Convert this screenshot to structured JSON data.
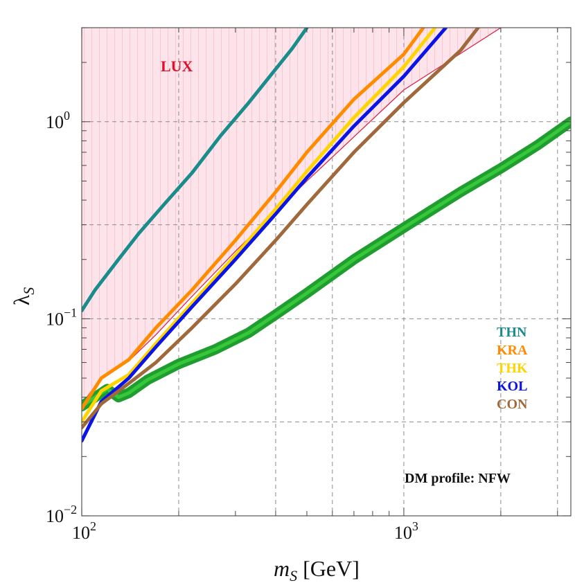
{
  "chart_data": {
    "type": "line",
    "title": "",
    "xscale": "log",
    "yscale": "log",
    "xlim": [
      100,
      3300
    ],
    "ylim": [
      0.01,
      3.0
    ],
    "grid": true,
    "xlabel": {
      "var": "m",
      "sub": "S",
      "rest": " [GeV]"
    },
    "ylabel": {
      "var": "λ",
      "sub": "S"
    },
    "xticks": [
      {
        "value": 100,
        "base": "10",
        "exp": "2"
      },
      {
        "value": 1000,
        "base": "10",
        "exp": "3"
      }
    ],
    "yticks": [
      {
        "value": 0.01,
        "base": "10",
        "exp": "−2"
      },
      {
        "value": 0.1,
        "base": "10",
        "exp": "−1"
      },
      {
        "value": 1,
        "base": "10",
        "exp": "0"
      }
    ],
    "excluded_region": {
      "label": "LUX",
      "color": "#d81b3c",
      "boundary": [
        [
          100,
          0.037
        ],
        [
          115,
          0.05
        ],
        [
          140,
          0.061
        ],
        [
          170,
          0.083
        ],
        [
          220,
          0.13
        ],
        [
          300,
          0.22
        ],
        [
          500,
          0.5
        ],
        [
          1000,
          1.45
        ],
        [
          2000,
          3.0
        ]
      ]
    },
    "band": {
      "color": "#1f9e2f",
      "points": [
        [
          100,
          0.036
        ],
        [
          110,
          0.04
        ],
        [
          120,
          0.044
        ],
        [
          130,
          0.04
        ],
        [
          140,
          0.042
        ],
        [
          160,
          0.049
        ],
        [
          200,
          0.059
        ],
        [
          260,
          0.07
        ],
        [
          330,
          0.085
        ],
        [
          400,
          0.105
        ],
        [
          500,
          0.135
        ],
        [
          700,
          0.2
        ],
        [
          1000,
          0.29
        ],
        [
          1500,
          0.44
        ],
        [
          2000,
          0.58
        ],
        [
          2600,
          0.76
        ],
        [
          3300,
          1.0
        ]
      ]
    },
    "series": [
      {
        "name": "THN",
        "color": "#1a8c8c",
        "points": [
          [
            100,
            0.11
          ],
          [
            110,
            0.14
          ],
          [
            130,
            0.2
          ],
          [
            150,
            0.27
          ],
          [
            180,
            0.38
          ],
          [
            220,
            0.55
          ],
          [
            270,
            0.85
          ],
          [
            330,
            1.25
          ],
          [
            400,
            1.85
          ],
          [
            450,
            2.35
          ],
          [
            500,
            3.0
          ]
        ]
      },
      {
        "name": "KRA",
        "color": "#ff8c00",
        "points": [
          [
            100,
            0.035
          ],
          [
            115,
            0.05
          ],
          [
            140,
            0.062
          ],
          [
            170,
            0.09
          ],
          [
            220,
            0.14
          ],
          [
            300,
            0.25
          ],
          [
            400,
            0.44
          ],
          [
            500,
            0.7
          ],
          [
            700,
            1.3
          ],
          [
            1000,
            2.2
          ],
          [
            1150,
            3.0
          ]
        ]
      },
      {
        "name": "THK",
        "color": "#ffd400",
        "points": [
          [
            100,
            0.03
          ],
          [
            115,
            0.043
          ],
          [
            140,
            0.052
          ],
          [
            170,
            0.075
          ],
          [
            220,
            0.12
          ],
          [
            300,
            0.21
          ],
          [
            400,
            0.36
          ],
          [
            500,
            0.56
          ],
          [
            700,
            1.05
          ],
          [
            1000,
            1.9
          ],
          [
            1250,
            3.0
          ]
        ]
      },
      {
        "name": "KOL",
        "color": "#0a14e6",
        "points": [
          [
            100,
            0.024
          ],
          [
            115,
            0.038
          ],
          [
            140,
            0.05
          ],
          [
            170,
            0.072
          ],
          [
            220,
            0.115
          ],
          [
            300,
            0.2
          ],
          [
            400,
            0.34
          ],
          [
            500,
            0.52
          ],
          [
            700,
            0.95
          ],
          [
            1000,
            1.7
          ],
          [
            1350,
            3.0
          ]
        ]
      },
      {
        "name": "CON",
        "color": "#a0693c",
        "points": [
          [
            100,
            0.028
          ],
          [
            115,
            0.037
          ],
          [
            140,
            0.047
          ],
          [
            170,
            0.06
          ],
          [
            220,
            0.09
          ],
          [
            300,
            0.15
          ],
          [
            400,
            0.25
          ],
          [
            500,
            0.38
          ],
          [
            700,
            0.7
          ],
          [
            1000,
            1.25
          ],
          [
            1500,
            2.3
          ],
          [
            1700,
            3.0
          ]
        ]
      }
    ],
    "legend_position": "right",
    "annotation": "DM profile: NFW"
  }
}
